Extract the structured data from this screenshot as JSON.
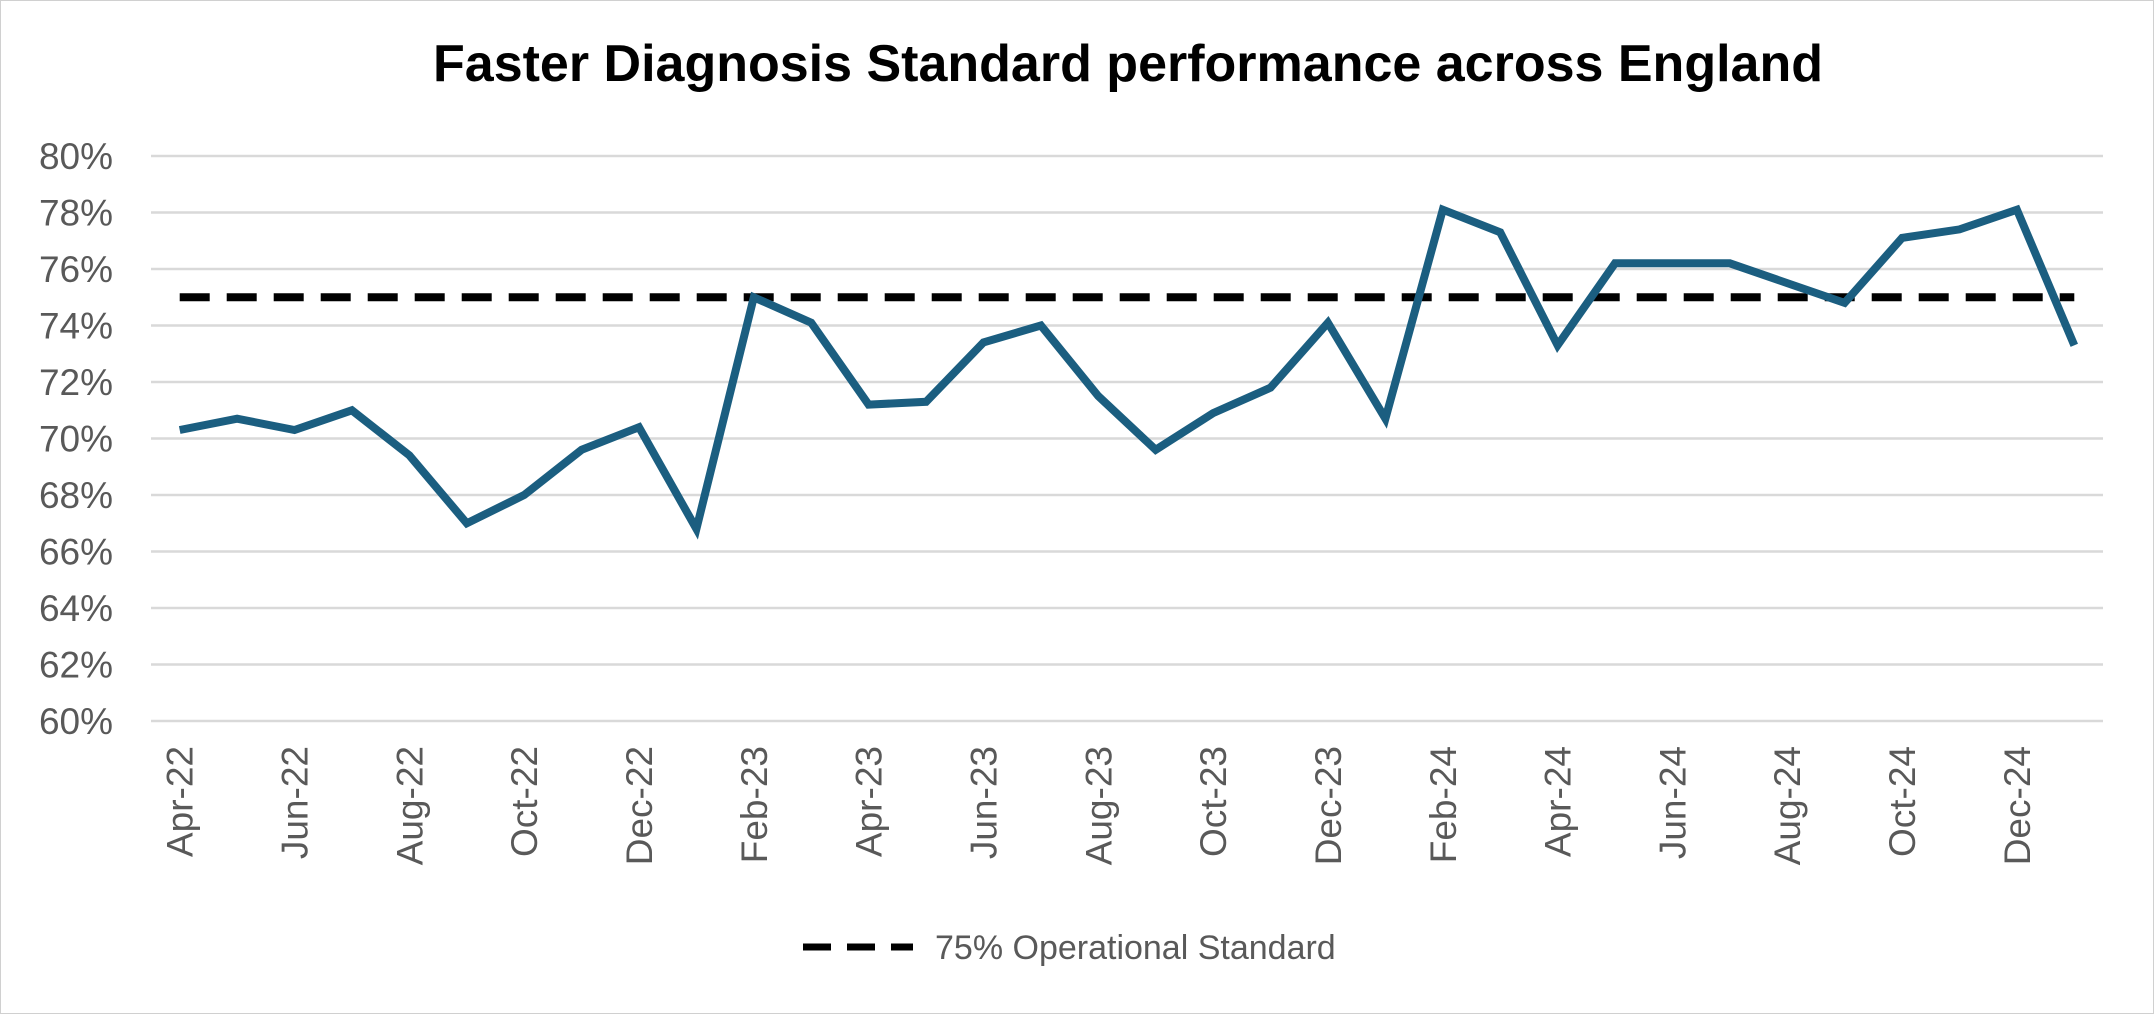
{
  "chart_data": {
    "type": "line",
    "title": "Faster Diagnosis Standard performance across England",
    "xlabel": "",
    "ylabel": "",
    "ylim": [
      60,
      80
    ],
    "y_ticks": [
      "60%",
      "62%",
      "64%",
      "66%",
      "68%",
      "70%",
      "72%",
      "74%",
      "76%",
      "78%",
      "80%"
    ],
    "y_tick_values": [
      60,
      62,
      64,
      66,
      68,
      70,
      72,
      74,
      76,
      78,
      80
    ],
    "categories": [
      "Apr-22",
      "May-22",
      "Jun-22",
      "Jul-22",
      "Aug-22",
      "Sep-22",
      "Oct-22",
      "Nov-22",
      "Dec-22",
      "Jan-23",
      "Feb-23",
      "Mar-23",
      "Apr-23",
      "May-23",
      "Jun-23",
      "Jul-23",
      "Aug-23",
      "Sep-23",
      "Oct-23",
      "Nov-23",
      "Dec-23",
      "Jan-24",
      "Feb-24",
      "Mar-24",
      "Apr-24",
      "May-24",
      "Jun-24",
      "Jul-24",
      "Aug-24",
      "Sep-24",
      "Oct-24",
      "Nov-24",
      "Dec-24",
      "Jan-25"
    ],
    "x_tick_labels": [
      "Apr-22",
      "Jun-22",
      "Aug-22",
      "Oct-22",
      "Dec-22",
      "Feb-23",
      "Apr-23",
      "Jun-23",
      "Aug-23",
      "Oct-23",
      "Dec-23",
      "Feb-24",
      "Apr-24",
      "Jun-24",
      "Aug-24",
      "Oct-24",
      "Dec-24"
    ],
    "series": [
      {
        "name": "FDS performance",
        "color": "#1b5e80",
        "style": "solid",
        "values": [
          70.3,
          70.7,
          70.3,
          71.0,
          69.4,
          67.0,
          68.0,
          69.6,
          70.4,
          66.8,
          75.0,
          74.1,
          71.2,
          71.3,
          73.4,
          74.0,
          71.5,
          69.6,
          70.9,
          71.8,
          74.1,
          70.7,
          78.1,
          77.3,
          73.3,
          76.2,
          76.2,
          76.2,
          75.5,
          74.8,
          77.1,
          77.4,
          78.1,
          73.3
        ]
      },
      {
        "name": "75% Operational Standard",
        "color": "#000000",
        "style": "dashed",
        "value": 75
      }
    ],
    "legend": {
      "position": "bottom",
      "items": [
        {
          "label": "75% Operational Standard",
          "color": "#000000",
          "style": "dashed"
        }
      ]
    },
    "grid": true
  }
}
